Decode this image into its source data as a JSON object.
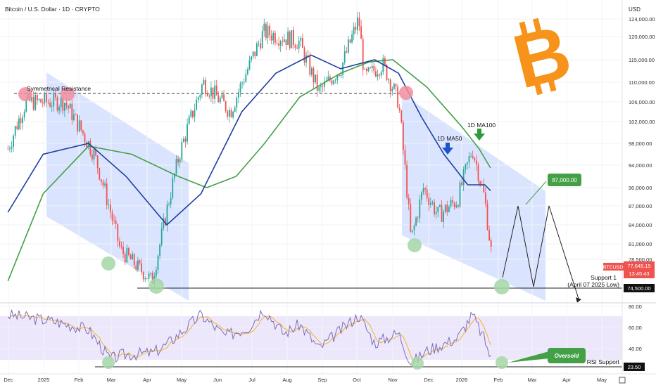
{
  "header": {
    "symbol_title": "Bitcoin / U.S. Dollar · 1D · CRYPTO"
  },
  "axis": {
    "currency_label": "USD",
    "price_ticks": [
      "124,000.00",
      "120,000.00",
      "115,000.00",
      "110,000.00",
      "106,000.00",
      "102,000.00",
      "98,000.00",
      "94,000.00",
      "90,000.00",
      "87,000.00",
      "84,000.00",
      "81,000.00",
      "78,500.00"
    ],
    "rsi_ticks": [
      "80.00",
      "60.00",
      "40.00"
    ],
    "time_ticks": [
      "Dec",
      "2025",
      "Feb",
      "Mar",
      "Apr",
      "May",
      "Jun",
      "Jul",
      "Aug",
      "Sep",
      "Oct",
      "Nov",
      "Dec",
      "2026",
      "Feb",
      "Mar",
      "Apr",
      "May"
    ]
  },
  "labels": {
    "resistance": "Symmetrical Resistance",
    "ma50": "1D MA50",
    "ma100": "1D MA100",
    "target": "87,000.00",
    "support_line1": "Support 1",
    "support_line2": "(April 07 2025 Low)",
    "oversold": "Oversold",
    "rsi_support": "RSI Support"
  },
  "price_tag": {
    "symbol": "BTCUSD",
    "price": "77,645.15",
    "countdown": "13:45:43"
  },
  "support_tag": "74,500.00",
  "rsi_support_tag": "23.50",
  "colors": {
    "up": "#26a69a",
    "down": "#ef5350",
    "ma50": "#1e3fa0",
    "ma100": "#43a047",
    "channel": "#dbe4ff",
    "rsi_band": "#ede7fb",
    "rsi_line": "#7e6fb8",
    "rsi_ma": "#f0b429",
    "circle_red": "#f28ea0",
    "circle_green": "#a5d6a7",
    "bitcoin": "#f7931a",
    "target": "#43a047"
  },
  "chart_data": {
    "type": "candlestick",
    "title": "Bitcoin / U.S. Dollar · 1D · CRYPTO",
    "ylabel": "USD",
    "ylim": [
      71000,
      127000
    ],
    "series": [
      {
        "name": "BTCUSD",
        "x": [
          "2024-12-01",
          "2024-12-17",
          "2025-01-20",
          "2025-02-15",
          "2025-03-10",
          "2025-04-07",
          "2025-05-01",
          "2025-05-22",
          "2025-06-15",
          "2025-07-14",
          "2025-08-14",
          "2025-09-01",
          "2025-09-20",
          "2025-10-06",
          "2025-10-11",
          "2025-10-27",
          "2025-11-10",
          "2025-11-21",
          "2025-12-02",
          "2025-12-15",
          "2026-01-01",
          "2026-01-14",
          "2026-01-25",
          "2026-02-01"
        ],
        "close": [
          97000,
          106000,
          106000,
          96000,
          80000,
          75000,
          96000,
          110000,
          104000,
          121000,
          119000,
          108000,
          113000,
          124000,
          111000,
          114000,
          106000,
          81500,
          90000,
          85500,
          88000,
          97000,
          88000,
          77645
        ]
      },
      {
        "name": "1D MA50",
        "x": [
          "2024-12-01",
          "2025-01-01",
          "2025-02-10",
          "2025-03-15",
          "2025-04-20",
          "2025-05-20",
          "2025-06-25",
          "2025-07-25",
          "2025-08-25",
          "2025-09-20",
          "2025-10-20",
          "2025-11-10",
          "2025-11-30",
          "2025-12-20",
          "2026-01-10",
          "2026-01-25",
          "2026-01-30"
        ],
        "values": [
          86000,
          96000,
          98000,
          92000,
          84000,
          89000,
          104000,
          112000,
          116000,
          113000,
          115000,
          112000,
          103000,
          96000,
          90500,
          90500,
          89500
        ]
      },
      {
        "name": "1D MA100",
        "x": [
          "2024-12-01",
          "2025-01-01",
          "2025-02-10",
          "2025-03-20",
          "2025-04-30",
          "2025-05-25",
          "2025-06-20",
          "2025-07-15",
          "2025-08-15",
          "2025-09-20",
          "2025-10-15",
          "2025-11-05",
          "2025-12-05",
          "2026-01-05",
          "2026-01-20",
          "2026-01-30"
        ],
        "values": [
          75000,
          89000,
          97500,
          96000,
          92000,
          90000,
          92000,
          98000,
          107000,
          112000,
          114500,
          115000,
          109000,
          101000,
          97000,
          93500
        ]
      }
    ],
    "rsi": {
      "ylim": [
        20,
        85
      ],
      "x": [
        "2024-12-01",
        "2025-01-10",
        "2025-02-10",
        "2025-03-01",
        "2025-03-12",
        "2025-04-08",
        "2025-04-20",
        "2025-05-20",
        "2025-06-10",
        "2025-07-01",
        "2025-07-14",
        "2025-08-01",
        "2025-08-15",
        "2025-09-01",
        "2025-10-06",
        "2025-10-20",
        "2025-11-10",
        "2025-11-21",
        "2025-12-05",
        "2026-01-01",
        "2026-01-14",
        "2026-01-25",
        "2026-02-01"
      ],
      "values": [
        72,
        66,
        58,
        30,
        34,
        36,
        44,
        72,
        52,
        60,
        78,
        54,
        63,
        40,
        72,
        45,
        55,
        26,
        38,
        50,
        72,
        48,
        25
      ]
    },
    "levels": {
      "symmetrical_resistance": 107400,
      "support_1": 74500,
      "target": 87000,
      "rsi_support": 23.5
    },
    "annotations": [
      "Symmetrical Resistance",
      "1D MA50",
      "1D MA100",
      "87,000.00",
      "Support 1 (April 07 2025 Low)",
      "Oversold",
      "RSI Support"
    ]
  }
}
